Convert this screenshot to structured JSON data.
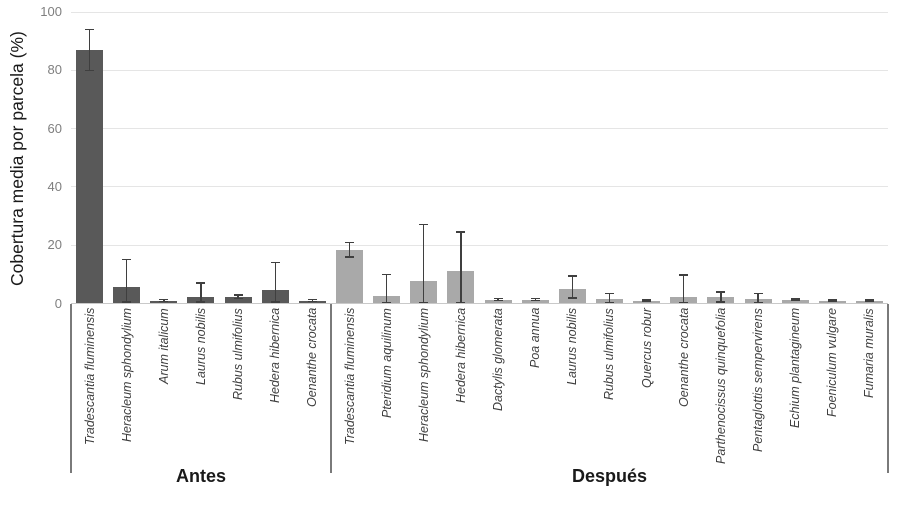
{
  "chart_data": {
    "type": "bar",
    "title": "",
    "ylabel": "Cobertura media por parcela (%)",
    "xlabel": "",
    "ylim": [
      0,
      100
    ],
    "yticks": [
      0,
      20,
      40,
      60,
      80,
      100
    ],
    "grid": true,
    "legend": "none",
    "error_bars": true,
    "groups": [
      {
        "label": "Antes",
        "bar_color": "#595959",
        "bars": [
          {
            "species": "Tradescantia fluminensis",
            "value": 87,
            "err_low": 80,
            "err_high": 94
          },
          {
            "species": "Heracleum sphondylium",
            "value": 5.5,
            "err_low": 0.5,
            "err_high": 15
          },
          {
            "species": "Arum italicum",
            "value": 1,
            "err_low": 0.6,
            "err_high": 1.4
          },
          {
            "species": "Laurus nobilis",
            "value": 2.2,
            "err_low": 0.5,
            "err_high": 7
          },
          {
            "species": "Rubus ulmifolius",
            "value": 2.3,
            "err_low": 1.8,
            "err_high": 2.9
          },
          {
            "species": "Hedera hibernica",
            "value": 4.5,
            "err_low": 0.5,
            "err_high": 14
          },
          {
            "species": "Oenanthe crocata",
            "value": 1,
            "err_low": 0.7,
            "err_high": 1.4
          }
        ]
      },
      {
        "label": "Después",
        "bar_color": "#a9a9a9",
        "bars": [
          {
            "species": "Tradescantia fluminensis",
            "value": 18.5,
            "err_low": 16,
            "err_high": 21
          },
          {
            "species": "Pteridium aquilinum",
            "value": 2.6,
            "err_low": 0.4,
            "err_high": 10
          },
          {
            "species": "Heracleum sphondylium",
            "value": 7.8,
            "err_low": 0.3,
            "err_high": 27
          },
          {
            "species": "Hedera hibernica",
            "value": 11.2,
            "err_low": 0.3,
            "err_high": 24.5
          },
          {
            "species": "Dactylis glomerata",
            "value": 1.3,
            "err_low": 1.0,
            "err_high": 1.7
          },
          {
            "species": "Poa annua",
            "value": 1.3,
            "err_low": 1.0,
            "err_high": 1.7
          },
          {
            "species": "Laurus nobilis",
            "value": 5.1,
            "err_low": 1.9,
            "err_high": 9.4
          },
          {
            "species": "Rubus ulmifolius",
            "value": 1.7,
            "err_low": 0.4,
            "err_high": 3.4
          },
          {
            "species": "Quercus robur",
            "value": 0.9,
            "err_low": 0.6,
            "err_high": 1.2
          },
          {
            "species": "Oenanthe crocata",
            "value": 2.3,
            "err_low": 0.3,
            "err_high": 9.8
          },
          {
            "species": "Parthenocissus quinquefolia",
            "value": 2.2,
            "err_low": 0.5,
            "err_high": 4.0
          },
          {
            "species": "Pentaglottis sempervirens",
            "value": 1.5,
            "err_low": 0.3,
            "err_high": 3.4
          },
          {
            "species": "Echium plantagineum",
            "value": 1.3,
            "err_low": 1.0,
            "err_high": 1.6
          },
          {
            "species": "Foeniculum vulgare",
            "value": 0.9,
            "err_low": 0.6,
            "err_high": 1.2
          },
          {
            "species": "Fumaria muralis",
            "value": 0.9,
            "err_low": 0.6,
            "err_high": 1.2
          }
        ]
      }
    ]
  },
  "colors": {
    "background": "#ffffff",
    "bar_antes": "#595959",
    "bar_despues": "#a9a9a9",
    "error_bar": "#3f3f3f",
    "gridline": "#e5e5e5",
    "axis_line": "#c9c9c9",
    "tick_text": "#7f7f7f",
    "label_text": "#3f3f3f",
    "group_bracket": "#7a7a7a"
  }
}
